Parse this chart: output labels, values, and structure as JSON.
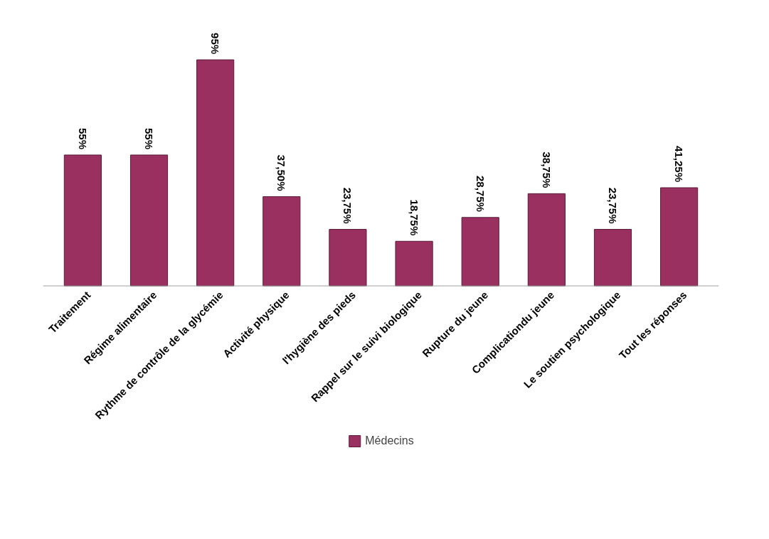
{
  "chart_data": {
    "type": "bar",
    "categories": [
      "Traitement",
      "Régime alimentaire",
      "Rythme de contrôle de la glycémie",
      "Activité physique",
      "l'hygiène des pieds",
      "Rappel sur le suivi biologique",
      "Rupture du jeune",
      "Complicationdu jeune",
      "Le soutien psychologique",
      "Tout les réponses"
    ],
    "series": [
      {
        "name": "Médecins",
        "color": "#99305f",
        "values": [
          55,
          55,
          95,
          37.5,
          23.75,
          18.75,
          28.75,
          38.75,
          23.75,
          41.25
        ],
        "value_labels": [
          "55%",
          "55%",
          "95%",
          "37,50%",
          "23,75%",
          "18,75%",
          "28,75%",
          "38,75%",
          "23,75%",
          "41,25%"
        ]
      }
    ],
    "legend": "bottom",
    "grid": false
  }
}
